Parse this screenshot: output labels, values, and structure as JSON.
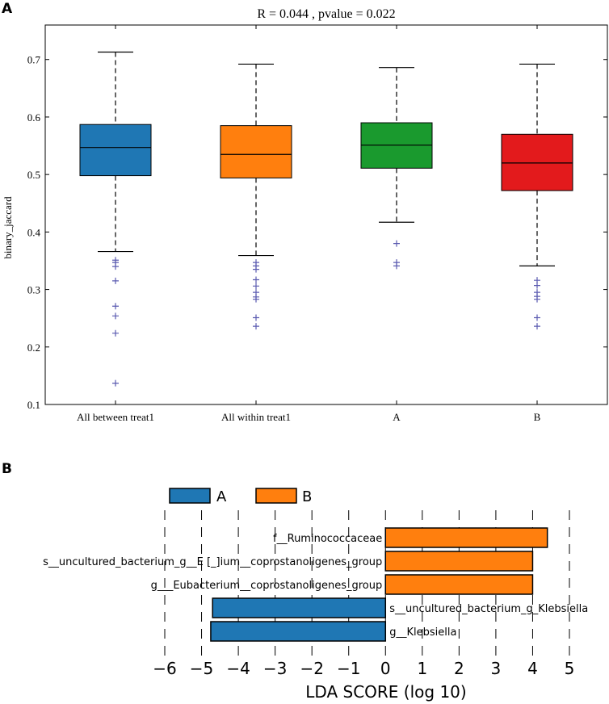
{
  "chart_data": [
    {
      "panel_label": "A",
      "type": "box",
      "title": "R = 0.044 , pvalue = 0.022",
      "xlabel": "",
      "ylabel": "binary_jaccard",
      "ylim": [
        0.1,
        0.76
      ],
      "yticks": [
        0.1,
        0.2,
        0.3,
        0.4,
        0.5,
        0.6,
        0.7
      ],
      "ytick_labels": [
        "0.1",
        "0.2",
        "0.3",
        "0.4",
        "0.5",
        "0.6",
        "0.7"
      ],
      "categories": [
        "All between treat1",
        "All within treat1",
        "A",
        "B"
      ],
      "colors": [
        "#1f77b4",
        "#ff7f0e",
        "#1a9a2e",
        "#e31a1c"
      ],
      "outlier_color": "#5b5bb0",
      "boxes": [
        {
          "whislo": 0.366,
          "q1": 0.498,
          "med": 0.547,
          "q3": 0.587,
          "whishi": 0.713,
          "fliers": [
            0.351,
            0.347,
            0.34,
            0.315,
            0.271,
            0.254,
            0.224,
            0.137
          ]
        },
        {
          "whislo": 0.359,
          "q1": 0.494,
          "med": 0.535,
          "q3": 0.585,
          "whishi": 0.692,
          "fliers": [
            0.347,
            0.341,
            0.335,
            0.317,
            0.306,
            0.295,
            0.287,
            0.283,
            0.251,
            0.236
          ]
        },
        {
          "whislo": 0.417,
          "q1": 0.511,
          "med": 0.551,
          "q3": 0.59,
          "whishi": 0.686,
          "fliers": [
            0.38,
            0.347,
            0.341
          ]
        },
        {
          "whislo": 0.341,
          "q1": 0.472,
          "med": 0.52,
          "q3": 0.57,
          "whishi": 0.692,
          "fliers": [
            0.316,
            0.307,
            0.295,
            0.288,
            0.283,
            0.251,
            0.236
          ]
        }
      ]
    },
    {
      "panel_label": "B",
      "type": "bar",
      "orientation": "horizontal",
      "xlabel": "LDA SCORE (log 10)",
      "xlim": [
        -6,
        5
      ],
      "xticks": [
        -6,
        -5,
        -4,
        -3,
        -2,
        -1,
        0,
        1,
        2,
        3,
        4,
        5
      ],
      "xtick_labels": [
        "−6",
        "−5",
        "−4",
        "−3",
        "−2",
        "−1",
        "0",
        "1",
        "2",
        "3",
        "4",
        "5"
      ],
      "legend": [
        {
          "label": "A",
          "color": "#1f77b4"
        },
        {
          "label": "B",
          "color": "#ff7f0e"
        }
      ],
      "bars": [
        {
          "label": "f__Ruminococcaceae",
          "value": 4.4,
          "group": "B"
        },
        {
          "label": "s__uncultured_bacterium_g__E [_]ium__coprostanoligenes_group",
          "value": 4.0,
          "group": "B"
        },
        {
          "label": "g___Eubacterium__coprostanoligenes_group",
          "value": 4.0,
          "group": "B"
        },
        {
          "label": "s__uncultured_bacterium_g_Klebsiella",
          "value": -4.7,
          "group": "A"
        },
        {
          "label": "g__Klebsiella",
          "value": -4.75,
          "group": "A"
        }
      ]
    }
  ]
}
